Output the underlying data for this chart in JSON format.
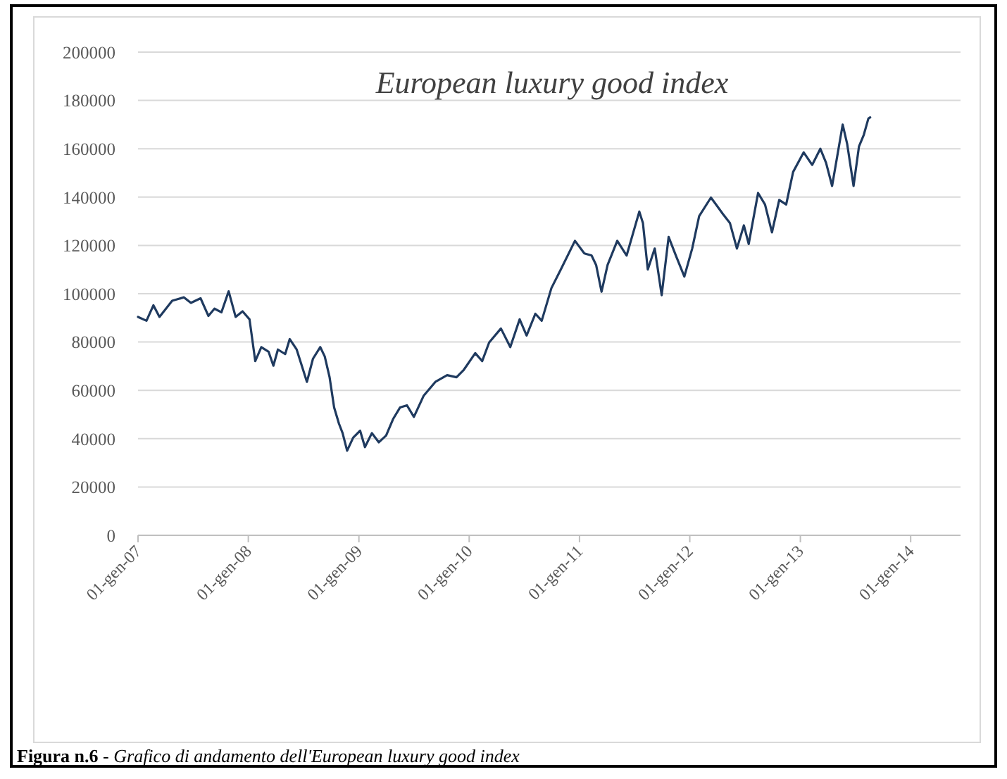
{
  "chart_data": {
    "type": "line",
    "title": "European luxury good index",
    "x": [
      "2007-01-01",
      "2007-01-29",
      "2007-02-21",
      "2007-03-13",
      "2007-04-24",
      "2007-06-02",
      "2007-06-25",
      "2007-07-27",
      "2007-08-22",
      "2007-09-11",
      "2007-10-04",
      "2007-10-28",
      "2007-11-20",
      "2007-12-13",
      "2008-01-05",
      "2008-01-24",
      "2008-02-13",
      "2008-03-08",
      "2008-03-24",
      "2008-04-08",
      "2008-05-02",
      "2008-05-17",
      "2008-06-09",
      "2008-07-13",
      "2008-08-02",
      "2008-08-26",
      "2008-09-10",
      "2008-09-26",
      "2008-10-11",
      "2008-10-27",
      "2008-11-08",
      "2008-11-23",
      "2008-12-13",
      "2009-01-05",
      "2009-01-21",
      "2009-02-13",
      "2009-03-08",
      "2009-04-01",
      "2009-04-24",
      "2009-05-17",
      "2009-06-09",
      "2009-07-02",
      "2009-08-03",
      "2009-09-11",
      "2009-10-20",
      "2009-11-20",
      "2009-12-13",
      "2010-01-21",
      "2010-02-13",
      "2010-03-08",
      "2010-04-16",
      "2010-05-17",
      "2010-06-17",
      "2010-07-10",
      "2010-08-08",
      "2010-08-29",
      "2010-09-30",
      "2010-10-31",
      "2010-12-17",
      "2011-01-17",
      "2011-02-10",
      "2011-02-25",
      "2011-03-15",
      "2011-04-04",
      "2011-05-06",
      "2011-06-06",
      "2011-07-18",
      "2011-07-30",
      "2011-08-15",
      "2011-09-07",
      "2011-09-30",
      "2011-10-23",
      "2011-11-16",
      "2011-12-14",
      "2012-01-09",
      "2012-02-01",
      "2012-03-11",
      "2012-04-19",
      "2012-05-13",
      "2012-06-05",
      "2012-06-28",
      "2012-07-14",
      "2012-08-14",
      "2012-09-06",
      "2012-09-29",
      "2012-10-23",
      "2012-11-15",
      "2012-12-08",
      "2013-01-12",
      "2013-02-09",
      "2013-03-08",
      "2013-03-27",
      "2013-04-16",
      "2013-05-21",
      "2013-06-05",
      "2013-06-26",
      "2013-07-14",
      "2013-07-30",
      "2013-08-14",
      "2013-08-20"
    ],
    "series": [
      {
        "color": "#1f3a5f",
        "values": [
          90400,
          88800,
          95200,
          90400,
          97100,
          98500,
          96200,
          98100,
          90800,
          93800,
          92300,
          101000,
          90400,
          92700,
          89400,
          72100,
          77900,
          76000,
          70200,
          76900,
          75000,
          81200,
          76900,
          63500,
          73100,
          77900,
          74000,
          65400,
          52900,
          46200,
          42300,
          35000,
          40400,
          43300,
          36500,
          42300,
          38500,
          41300,
          48100,
          52900,
          53800,
          49000,
          57700,
          63500,
          66300,
          65400,
          68300,
          75400,
          72100,
          79800,
          85600,
          77900,
          89400,
          82700,
          91700,
          88800,
          102300,
          110000,
          121900,
          116700,
          115800,
          111900,
          100800,
          111900,
          121900,
          115800,
          134000,
          129200,
          110000,
          118700,
          99400,
          123500,
          115800,
          107100,
          118700,
          132100,
          139800,
          133100,
          129200,
          118700,
          128300,
          120600,
          141700,
          136900,
          125400,
          138800,
          136900,
          150400,
          158500,
          153300,
          160000,
          154200,
          144600,
          170000,
          161900,
          144600,
          161000,
          165800,
          172500,
          173000
        ]
      }
    ],
    "xlim": [
      "2007-01-01",
      "2014-06-15"
    ],
    "xticks": [
      {
        "value": "2007-01-01",
        "label": "01-gen-07"
      },
      {
        "value": "2008-01-01",
        "label": "01-gen-08"
      },
      {
        "value": "2009-01-01",
        "label": "01-gen-09"
      },
      {
        "value": "2010-01-01",
        "label": "01-gen-10"
      },
      {
        "value": "2011-01-01",
        "label": "01-gen-11"
      },
      {
        "value": "2012-01-01",
        "label": "01-gen-12"
      },
      {
        "value": "2013-01-01",
        "label": "01-gen-13"
      },
      {
        "value": "2014-01-01",
        "label": "01-gen-14"
      }
    ],
    "ylim": [
      0,
      200000
    ],
    "yticks": [
      0,
      20000,
      40000,
      60000,
      80000,
      100000,
      120000,
      140000,
      160000,
      180000,
      200000
    ],
    "grid": "y",
    "marker": "none",
    "line_style": "solid",
    "annotations": [
      "Figura n.6 - Grafico di andamento dell'European luxury good index"
    ]
  }
}
